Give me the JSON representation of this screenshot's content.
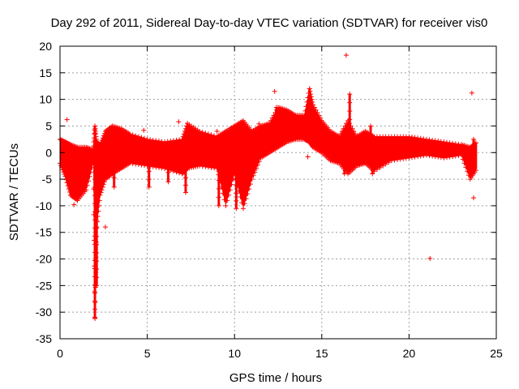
{
  "chart_data": {
    "type": "scatter",
    "title": "Day 292 of 2011, Sidereal Day-to-day VTEC variation (SDTVAR) for receiver vis0",
    "xlabel": "GPS time / hours",
    "ylabel": "SDTVAR / TECUs",
    "xlim": [
      0,
      25
    ],
    "ylim": [
      -35,
      20
    ],
    "xticks": [
      0,
      5,
      10,
      15,
      20,
      25
    ],
    "yticks": [
      20,
      15,
      10,
      5,
      0,
      -5,
      -10,
      -15,
      -20,
      -25,
      -30,
      -35
    ],
    "grid": true,
    "marker": "+",
    "color": "#ff0000",
    "series": [
      {
        "name": "SDTVAR",
        "envelope": {
          "x": [
            0.0,
            0.3,
            0.6,
            1.0,
            1.5,
            1.9,
            2.0,
            2.1,
            2.3,
            2.6,
            3.0,
            3.5,
            4.0,
            5.0,
            6.0,
            7.0,
            7.3,
            8.0,
            9.0,
            9.5,
            10.0,
            10.5,
            11.0,
            11.5,
            12.0,
            12.5,
            13.0,
            13.5,
            14.0,
            14.3,
            14.5,
            15.0,
            15.5,
            16.0,
            16.5,
            17.0,
            17.5,
            18.0,
            19.0,
            20.0,
            21.0,
            22.0,
            23.0,
            23.5,
            23.9
          ],
          "upper": [
            2.5,
            2.0,
            1.5,
            1.0,
            1.0,
            0.5,
            5.0,
            2.0,
            1.5,
            4.0,
            5.0,
            4.5,
            3.5,
            2.5,
            2.0,
            2.5,
            5.5,
            4.0,
            3.0,
            4.0,
            5.0,
            6.0,
            4.0,
            5.0,
            5.5,
            8.5,
            8.0,
            7.0,
            7.0,
            12.0,
            9.0,
            6.0,
            4.0,
            3.0,
            6.0,
            3.0,
            4.0,
            3.0,
            3.0,
            3.0,
            2.5,
            2.0,
            1.5,
            1.0,
            2.0
          ],
          "lower": [
            -2.0,
            -4.5,
            -8.0,
            -9.0,
            -7.0,
            -2.0,
            -31.0,
            -14.0,
            -8.0,
            -5.0,
            -4.0,
            -3.0,
            -2.0,
            -2.5,
            -3.0,
            -4.0,
            -3.0,
            -2.5,
            -3.0,
            -10.0,
            -4.0,
            -10.5,
            -5.0,
            -1.0,
            0.0,
            1.0,
            2.0,
            2.5,
            2.5,
            2.0,
            1.0,
            0.0,
            -1.5,
            -2.0,
            -4.0,
            -2.5,
            -2.0,
            -3.5,
            -1.5,
            -1.0,
            -0.5,
            -1.0,
            -0.5,
            -5.0,
            -3.0
          ]
        },
        "spikes": [
          {
            "x": 2.0,
            "y0": -5,
            "y1": -31
          },
          {
            "x": 2.1,
            "y0": -5,
            "y1": -25
          },
          {
            "x": 2.0,
            "y0": 1,
            "y1": 5
          },
          {
            "x": 3.1,
            "y0": -3,
            "y1": -6.5
          },
          {
            "x": 5.1,
            "y0": -2,
            "y1": -6.5
          },
          {
            "x": 6.2,
            "y0": -2,
            "y1": -5.5
          },
          {
            "x": 7.2,
            "y0": -2,
            "y1": -7.5
          },
          {
            "x": 9.1,
            "y0": -2,
            "y1": -10
          },
          {
            "x": 9.5,
            "y0": -3,
            "y1": -7
          },
          {
            "x": 10.1,
            "y0": -2,
            "y1": -10.5
          },
          {
            "x": 10.8,
            "y0": -2,
            "y1": -3.5
          },
          {
            "x": 12.4,
            "y0": 3,
            "y1": 8.5
          },
          {
            "x": 14.3,
            "y0": 5,
            "y1": 12
          },
          {
            "x": 16.6,
            "y0": 3,
            "y1": 11
          },
          {
            "x": 16.3,
            "y0": 0,
            "y1": -4
          },
          {
            "x": 17.8,
            "y0": 2,
            "y1": 5
          },
          {
            "x": 17.9,
            "y0": -1,
            "y1": -4
          },
          {
            "x": 23.7,
            "y0": 0,
            "y1": 2.5
          },
          {
            "x": 23.7,
            "y0": -1,
            "y1": -4
          }
        ],
        "outliers": [
          {
            "x": 0.4,
            "y": 6.2
          },
          {
            "x": 0.8,
            "y": -9.8
          },
          {
            "x": 2.0,
            "y": -31.2
          },
          {
            "x": 2.6,
            "y": -14.0
          },
          {
            "x": 4.8,
            "y": 4.2
          },
          {
            "x": 6.8,
            "y": 5.8
          },
          {
            "x": 9.0,
            "y": 4.0
          },
          {
            "x": 11.4,
            "y": 5.4
          },
          {
            "x": 12.3,
            "y": 11.5
          },
          {
            "x": 14.2,
            "y": -0.8
          },
          {
            "x": 16.4,
            "y": 18.3
          },
          {
            "x": 21.2,
            "y": -19.9
          },
          {
            "x": 23.6,
            "y": 11.2
          },
          {
            "x": 23.7,
            "y": -8.5
          }
        ]
      }
    ]
  }
}
